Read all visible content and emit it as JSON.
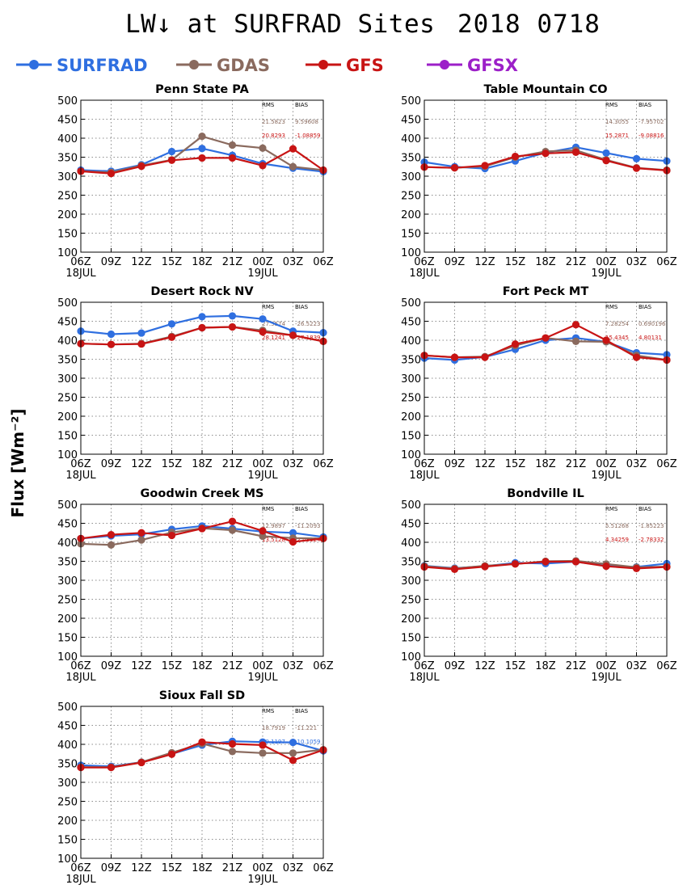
{
  "figure": {
    "title": "LW↓ at SURFRAD Sites",
    "date": "2018 0718",
    "ylabel": "Flux [Wm⁻²]",
    "legend": [
      {
        "name": "SURFRAD",
        "color": "#2f6fe0"
      },
      {
        "name": "GDAS",
        "color": "#8a6a5e"
      },
      {
        "name": "GFS",
        "color": "#c81414"
      },
      {
        "name": "GFSX",
        "color": "#9c1fc8"
      }
    ],
    "stats_header": {
      "rms": "RMS",
      "bias": "BIAS"
    }
  },
  "chart_data": [
    {
      "type": "line",
      "title": "Penn State PA",
      "categories": [
        "06Z",
        "09Z",
        "12Z",
        "15Z",
        "18Z",
        "21Z",
        "00Z",
        "03Z",
        "06Z"
      ],
      "date_labels": {
        "0": "18JUL",
        "6": "19JUL"
      },
      "ylim": [
        100,
        500
      ],
      "yticks": [
        100,
        150,
        200,
        250,
        300,
        350,
        400,
        450,
        500
      ],
      "grid": true,
      "series": [
        {
          "name": "SURFRAD",
          "color": "#2f6fe0",
          "values": [
            316,
            313,
            330,
            365,
            373,
            355,
            333,
            321,
            312
          ]
        },
        {
          "name": "GDAS",
          "color": "#8a6a5e",
          "values": [
            313,
            310,
            328,
            343,
            405,
            382,
            374,
            325,
            316
          ]
        },
        {
          "name": "GFS",
          "color": "#c81414",
          "values": [
            313,
            307,
            326,
            342,
            348,
            348,
            328,
            372,
            316
          ]
        }
      ],
      "stats": [
        {
          "series": "GDAS",
          "rms": "21.5823",
          "bias": "9.59608"
        },
        {
          "series": "GFS",
          "rms": "20.8293",
          "bias": "-1.08859"
        }
      ]
    },
    {
      "type": "line",
      "title": "Table Mountain CO",
      "categories": [
        "06Z",
        "09Z",
        "12Z",
        "15Z",
        "18Z",
        "21Z",
        "00Z",
        "03Z",
        "06Z"
      ],
      "date_labels": {
        "0": "18JUL",
        "6": "19JUL"
      },
      "ylim": [
        100,
        500
      ],
      "yticks": [
        100,
        150,
        200,
        250,
        300,
        350,
        400,
        450,
        500
      ],
      "grid": true,
      "series": [
        {
          "name": "SURFRAD",
          "color": "#2f6fe0",
          "values": [
            337,
            325,
            320,
            340,
            362,
            376,
            361,
            346,
            340
          ]
        },
        {
          "name": "GDAS",
          "color": "#8a6a5e",
          "values": [
            324,
            322,
            326,
            350,
            365,
            368,
            343,
            322,
            316
          ]
        },
        {
          "name": "GFS",
          "color": "#c81414",
          "values": [
            324,
            322,
            328,
            352,
            360,
            363,
            341,
            321,
            315
          ]
        }
      ],
      "stats": [
        {
          "series": "GDAS",
          "rms": "14.3055",
          "bias": "-7.95702"
        },
        {
          "series": "GFS",
          "rms": "15.2871",
          "bias": "-9.08816"
        }
      ]
    },
    {
      "type": "line",
      "title": "Desert Rock NV",
      "categories": [
        "06Z",
        "09Z",
        "12Z",
        "15Z",
        "18Z",
        "21Z",
        "00Z",
        "03Z",
        "06Z"
      ],
      "date_labels": {
        "0": "18JUL",
        "6": "19JUL"
      },
      "ylim": [
        100,
        500
      ],
      "yticks": [
        100,
        150,
        200,
        250,
        300,
        350,
        400,
        450,
        500
      ],
      "grid": true,
      "series": [
        {
          "name": "SURFRAD",
          "color": "#2f6fe0",
          "values": [
            424,
            416,
            419,
            443,
            462,
            464,
            456,
            424,
            420
          ]
        },
        {
          "name": "GDAS",
          "color": "#8a6a5e",
          "values": [
            391,
            389,
            391,
            410,
            433,
            435,
            426,
            413,
            397
          ]
        },
        {
          "name": "GFS",
          "color": "#c81414",
          "values": [
            391,
            389,
            390,
            408,
            433,
            435,
            422,
            413,
            397
          ]
        }
      ],
      "stats": [
        {
          "series": "GDAS",
          "rms": "27.5574",
          "bias": "-26.5223"
        },
        {
          "series": "GFS",
          "rms": "28.1241",
          "bias": "-27.1839"
        }
      ]
    },
    {
      "type": "line",
      "title": "Fort Peck MT",
      "categories": [
        "06Z",
        "09Z",
        "12Z",
        "15Z",
        "18Z",
        "21Z",
        "00Z",
        "03Z",
        "06Z"
      ],
      "date_labels": {
        "0": "18JUL",
        "6": "19JUL"
      },
      "ylim": [
        100,
        500
      ],
      "yticks": [
        100,
        150,
        200,
        250,
        300,
        350,
        400,
        450,
        500
      ],
      "grid": true,
      "series": [
        {
          "name": "SURFRAD",
          "color": "#2f6fe0",
          "values": [
            353,
            348,
            356,
            376,
            400,
            406,
            396,
            367,
            362
          ]
        },
        {
          "name": "GDAS",
          "color": "#8a6a5e",
          "values": [
            360,
            355,
            357,
            386,
            406,
            397,
            396,
            360,
            348
          ]
        },
        {
          "name": "GFS",
          "color": "#c81414",
          "values": [
            360,
            355,
            355,
            390,
            406,
            441,
            400,
            355,
            348
          ]
        }
      ],
      "stats": [
        {
          "series": "GDAS",
          "rms": "7.28254",
          "bias": "0.690196"
        },
        {
          "series": "GFS",
          "rms": "15.4345",
          "bias": "4.80131"
        }
      ]
    },
    {
      "type": "line",
      "title": "Goodwin Creek MS",
      "categories": [
        "06Z",
        "09Z",
        "12Z",
        "15Z",
        "18Z",
        "21Z",
        "00Z",
        "03Z",
        "06Z"
      ],
      "date_labels": {
        "0": "18JUL",
        "6": "19JUL"
      },
      "ylim": [
        100,
        500
      ],
      "yticks": [
        100,
        150,
        200,
        250,
        300,
        350,
        400,
        450,
        500
      ],
      "grid": true,
      "series": [
        {
          "name": "SURFRAD",
          "color": "#2f6fe0",
          "values": [
            410,
            417,
            421,
            434,
            443,
            436,
            428,
            425,
            414
          ]
        },
        {
          "name": "GDAS",
          "color": "#8a6a5e",
          "values": [
            396,
            393,
            406,
            426,
            437,
            432,
            416,
            411,
            410
          ]
        },
        {
          "name": "GFS",
          "color": "#c81414",
          "values": [
            410,
            420,
            425,
            418,
            436,
            455,
            430,
            401,
            410
          ]
        }
      ],
      "stats": [
        {
          "series": "GDAS",
          "rms": "12.9897",
          "bias": "-11.2093"
        },
        {
          "series": "GFS",
          "rms": "13.5128",
          "bias": "-2.03124"
        }
      ]
    },
    {
      "type": "line",
      "title": "Bondville IL",
      "categories": [
        "06Z",
        "09Z",
        "12Z",
        "15Z",
        "18Z",
        "21Z",
        "00Z",
        "03Z",
        "06Z"
      ],
      "date_labels": {
        "0": "18JUL",
        "6": "19JUL"
      },
      "ylim": [
        100,
        500
      ],
      "yticks": [
        100,
        150,
        200,
        250,
        300,
        350,
        400,
        450,
        500
      ],
      "grid": true,
      "series": [
        {
          "name": "SURFRAD",
          "color": "#2f6fe0",
          "values": [
            338,
            332,
            337,
            346,
            344,
            349,
            338,
            335,
            344
          ]
        },
        {
          "name": "GDAS",
          "color": "#8a6a5e",
          "values": [
            337,
            331,
            338,
            343,
            350,
            351,
            343,
            334,
            336
          ]
        },
        {
          "name": "GFS",
          "color": "#c81414",
          "values": [
            335,
            329,
            336,
            343,
            349,
            349,
            337,
            331,
            335
          ]
        }
      ],
      "stats": [
        {
          "series": "GDAS",
          "rms": "5.51268",
          "bias": "-1.85223"
        },
        {
          "series": "GFS",
          "rms": "4.34259",
          "bias": "-2.78332"
        }
      ]
    },
    {
      "type": "line",
      "title": "Sioux Fall SD",
      "categories": [
        "06Z",
        "09Z",
        "12Z",
        "15Z",
        "18Z",
        "21Z",
        "00Z",
        "03Z",
        "06Z"
      ],
      "date_labels": {
        "0": "18JUL",
        "6": "19JUL"
      },
      "ylim": [
        100,
        500
      ],
      "yticks": [
        100,
        150,
        200,
        250,
        300,
        350,
        400,
        450,
        500
      ],
      "grid": true,
      "series": [
        {
          "name": "SURFRAD",
          "color": "#2f6fe0",
          "values": [
            345,
            342,
            353,
            375,
            398,
            408,
            406,
            405,
            383
          ]
        },
        {
          "name": "GDAS",
          "color": "#8a6a5e",
          "values": [
            340,
            340,
            353,
            378,
            402,
            381,
            377,
            377,
            386
          ]
        },
        {
          "name": "GFS",
          "color": "#c81414",
          "values": [
            339,
            339,
            352,
            374,
            406,
            401,
            398,
            358,
            385
          ]
        }
      ],
      "stats": [
        {
          "series": "GDAS",
          "rms": "18.7919",
          "bias": "-11.221"
        },
        {
          "series": "SURFRAD",
          "rms": "19.1197",
          "bias": "-10.1059"
        }
      ]
    }
  ]
}
